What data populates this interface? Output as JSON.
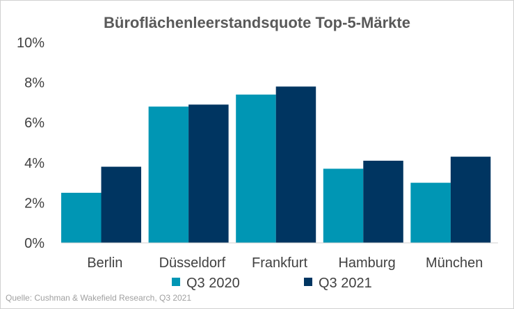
{
  "chart_data": {
    "type": "bar",
    "title": "Büroflächenleerstandsquote  Top-5-Märkte",
    "categories": [
      "Berlin",
      "Düsseldorf",
      "Frankfurt",
      "Hamburg",
      "München"
    ],
    "series": [
      {
        "name": "Q3 2020",
        "color": "#0096b4",
        "values": [
          2.5,
          6.8,
          7.4,
          3.7,
          3.0
        ]
      },
      {
        "name": "Q3 2021",
        "color": "#003561",
        "values": [
          3.8,
          6.9,
          7.8,
          4.1,
          4.3
        ]
      }
    ],
    "ylim": [
      0,
      10
    ],
    "yticks": [
      0,
      2,
      4,
      6,
      8,
      10
    ],
    "ytick_labels": [
      "0%",
      "2%",
      "4%",
      "6%",
      "8%",
      "10%"
    ],
    "xlabel": "",
    "ylabel": "",
    "grid": false,
    "legend_position": "bottom"
  },
  "source": "Quelle: Cushman & Wakefield Research, Q3 2021"
}
